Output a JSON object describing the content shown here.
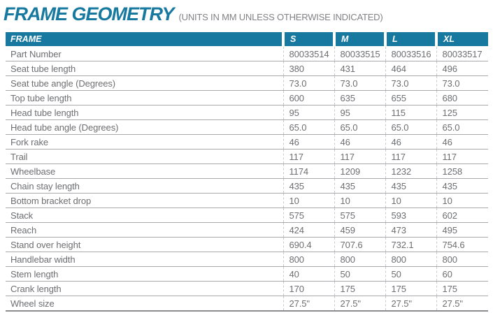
{
  "page": {
    "title": "FRAME GEOMETRY",
    "subtitle": "(UNITS IN MM UNLESS OTHERWISE INDICATED)"
  },
  "colors": {
    "accent_teal": "#1778A0",
    "header_text": "#FFFFFF",
    "body_text": "#6D6E71",
    "subtitle_gray": "#808285",
    "row_line": "#A7A9AC",
    "cell_divider": "#C7C9CB"
  },
  "chart_data": {
    "type": "table",
    "title": "FRAME GEOMETRY",
    "subtitle": "(UNITS IN MM UNLESS OTHERWISE INDICATED)",
    "columns": [
      "FRAME",
      "S",
      "M",
      "L",
      "XL"
    ],
    "rows": [
      {
        "label": "Part Number",
        "values": [
          "80033514",
          "80033515",
          "80033516",
          "80033517"
        ]
      },
      {
        "label": "Seat tube length",
        "values": [
          "380",
          "431",
          "464",
          "496"
        ]
      },
      {
        "label": "Seat tube angle (Degrees)",
        "values": [
          "73.0",
          "73.0",
          "73.0",
          "73.0"
        ]
      },
      {
        "label": "Top tube length",
        "values": [
          "600",
          "635",
          "655",
          "680"
        ]
      },
      {
        "label": "Head tube length",
        "values": [
          "95",
          "95",
          "115",
          "125"
        ]
      },
      {
        "label": "Head tube angle (Degrees)",
        "values": [
          "65.0",
          "65.0",
          "65.0",
          "65.0"
        ]
      },
      {
        "label": "Fork rake",
        "values": [
          "46",
          "46",
          "46",
          "46"
        ]
      },
      {
        "label": "Trail",
        "values": [
          "117",
          "117",
          "117",
          "117"
        ]
      },
      {
        "label": "Wheelbase",
        "values": [
          "1174",
          "1209",
          "1232",
          "1258"
        ]
      },
      {
        "label": "Chain stay length",
        "values": [
          "435",
          "435",
          "435",
          "435"
        ]
      },
      {
        "label": "Bottom bracket drop",
        "values": [
          "10",
          "10",
          "10",
          "10"
        ]
      },
      {
        "label": "Stack",
        "values": [
          "575",
          "575",
          "593",
          "602"
        ]
      },
      {
        "label": "Reach",
        "values": [
          "424",
          "459",
          "473",
          "495"
        ]
      },
      {
        "label": "Stand over height",
        "values": [
          "690.4",
          "707.6",
          "732.1",
          "754.6"
        ]
      },
      {
        "label": "Handlebar width",
        "values": [
          "800",
          "800",
          "800",
          "800"
        ]
      },
      {
        "label": "Stem length",
        "values": [
          "40",
          "50",
          "50",
          "60"
        ]
      },
      {
        "label": "Crank length",
        "values": [
          "170",
          "175",
          "175",
          "175"
        ]
      },
      {
        "label": "Wheel size",
        "values": [
          "27.5\"",
          "27.5\"",
          "27.5\"",
          "27.5\""
        ]
      }
    ]
  }
}
